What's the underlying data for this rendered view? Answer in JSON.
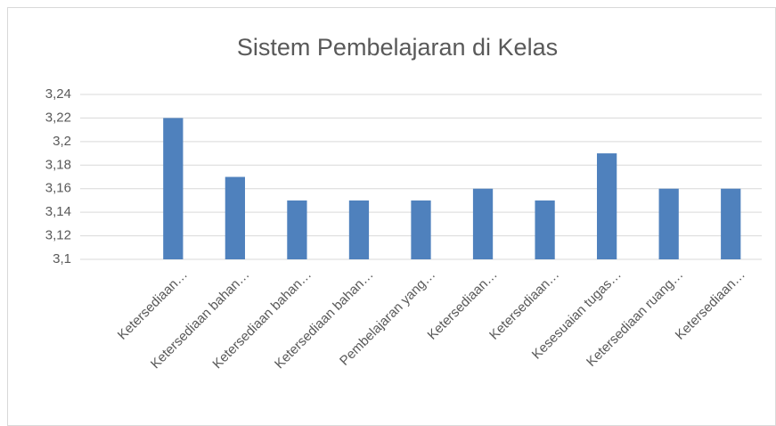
{
  "chart_data": {
    "type": "bar",
    "title": "Sistem Pembelajaran di Kelas",
    "categories": [
      null,
      "Ketersediaan…",
      "Ketersediaan bahan…",
      "Ketersediaan bahan…",
      "Ketersediaan bahan…",
      "Pembelajaran yang…",
      "Ketersediaan…",
      "Ketersediaan…",
      "Kesesuaian tugas…",
      "Ketersediaan ruang…",
      "Ketersediaan…"
    ],
    "values": [
      null,
      3.22,
      3.17,
      3.15,
      3.15,
      3.15,
      3.16,
      3.15,
      3.19,
      3.16,
      3.16
    ],
    "color": "#4f81bd",
    "ylim": [
      3.1,
      3.24
    ],
    "yticks": [
      {
        "value": 3.1,
        "label": "3,1"
      },
      {
        "value": 3.12,
        "label": "3,12"
      },
      {
        "value": 3.14,
        "label": "3,14"
      },
      {
        "value": 3.16,
        "label": "3,16"
      },
      {
        "value": 3.18,
        "label": "3,18"
      },
      {
        "value": 3.2,
        "label": "3,2"
      },
      {
        "value": 3.22,
        "label": "3,22"
      },
      {
        "value": 3.24,
        "label": "3,24"
      }
    ],
    "grid": true
  }
}
